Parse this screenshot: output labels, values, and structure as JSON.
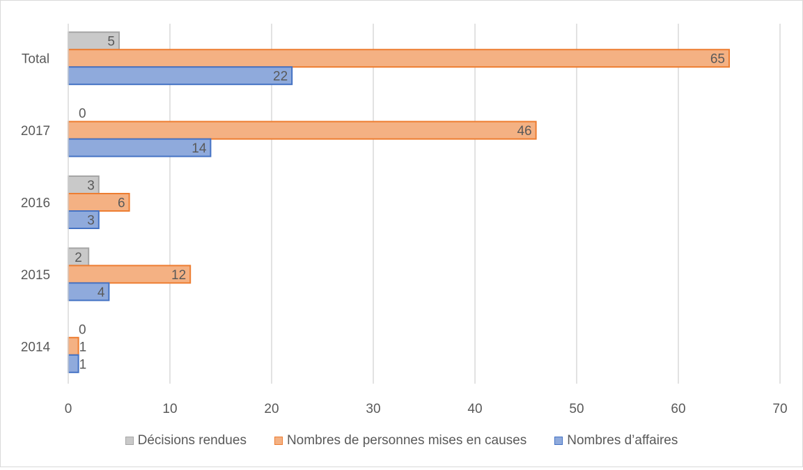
{
  "chart_data": {
    "type": "bar",
    "orientation": "horizontal",
    "categories": [
      "Total",
      "2017",
      "2016",
      "2015",
      "2014"
    ],
    "series": [
      {
        "name": "Décisions rendues",
        "values": [
          5,
          0,
          3,
          2,
          0
        ],
        "fill": "#c9c9c9",
        "stroke": "#a5a5a5"
      },
      {
        "name": "Nombres de personnes mises en causes",
        "values": [
          65,
          46,
          6,
          12,
          1
        ],
        "fill": "#f4b183",
        "stroke": "#ed7d31"
      },
      {
        "name": "Nombres d’affaires",
        "values": [
          22,
          14,
          3,
          4,
          1
        ],
        "fill": "#8faadc",
        "stroke": "#4472c4"
      }
    ],
    "xlim": [
      0,
      70
    ],
    "xticks": [
      "0",
      "10",
      "20",
      "30",
      "40",
      "50",
      "60",
      "70"
    ],
    "grid": "vertical",
    "legend_position": "bottom",
    "data_labels": true
  }
}
